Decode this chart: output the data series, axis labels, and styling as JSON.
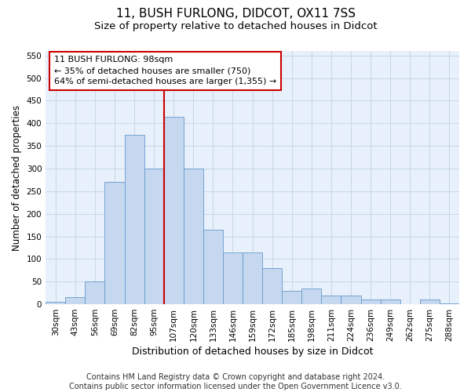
{
  "title1": "11, BUSH FURLONG, DIDCOT, OX11 7SS",
  "title2": "Size of property relative to detached houses in Didcot",
  "xlabel": "Distribution of detached houses by size in Didcot",
  "ylabel": "Number of detached properties",
  "categories": [
    "30sqm",
    "43sqm",
    "56sqm",
    "69sqm",
    "82sqm",
    "95sqm",
    "107sqm",
    "120sqm",
    "133sqm",
    "146sqm",
    "159sqm",
    "172sqm",
    "185sqm",
    "198sqm",
    "211sqm",
    "224sqm",
    "236sqm",
    "249sqm",
    "262sqm",
    "275sqm",
    "288sqm"
  ],
  "values": [
    5,
    15,
    50,
    270,
    375,
    300,
    415,
    300,
    165,
    115,
    115,
    80,
    30,
    35,
    20,
    20,
    10,
    10,
    0,
    10,
    2
  ],
  "bar_color": "#c5d8f0",
  "bar_edge_color": "#6699cc",
  "vline_color": "#cc0000",
  "annotation_text": "11 BUSH FURLONG: 98sqm\n← 35% of detached houses are smaller (750)\n64% of semi-detached houses are larger (1,355) →",
  "annotation_box_color": "#ffffff",
  "annotation_box_edge": "#cc0000",
  "ylim": [
    0,
    560
  ],
  "yticks": [
    0,
    50,
    100,
    150,
    200,
    250,
    300,
    350,
    400,
    450,
    500,
    550
  ],
  "footer": "Contains HM Land Registry data © Crown copyright and database right 2024.\nContains public sector information licensed under the Open Government Licence v3.0.",
  "background_color": "#e8f1fb",
  "grid_color": "#c8d8ea",
  "title1_fontsize": 11,
  "title2_fontsize": 9.5,
  "xlabel_fontsize": 9,
  "ylabel_fontsize": 8.5,
  "tick_fontsize": 7.5,
  "annotation_fontsize": 8,
  "footer_fontsize": 7
}
